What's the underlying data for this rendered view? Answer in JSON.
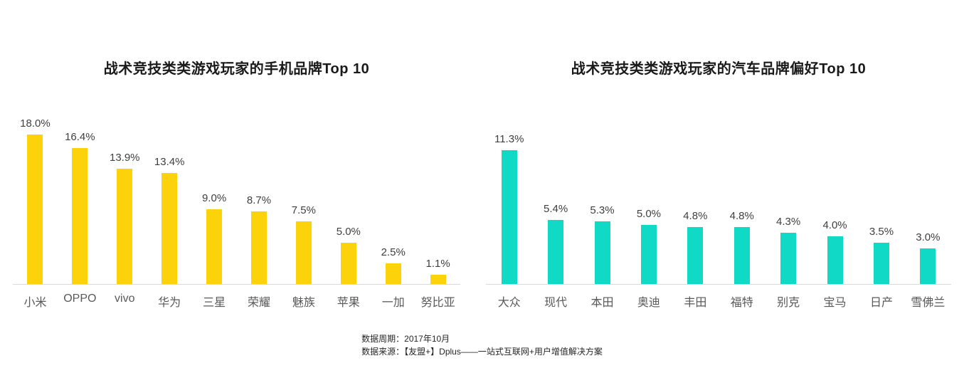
{
  "chart_data": [
    {
      "type": "bar",
      "title": "战术竞技类类游戏玩家的手机品牌Top 10",
      "categories": [
        "小米",
        "OPPO",
        "vivo",
        "华为",
        "三星",
        "荣耀",
        "魅族",
        "苹果",
        "一加",
        "努比亚"
      ],
      "values": [
        18.0,
        16.4,
        13.9,
        13.4,
        9.0,
        8.7,
        7.5,
        5.0,
        2.5,
        1.1
      ],
      "data_labels": [
        "18.0%",
        "16.4%",
        "13.9%",
        "13.4%",
        "9.0%",
        "8.7%",
        "7.5%",
        "5.0%",
        "2.5%",
        "1.1%"
      ],
      "bar_color": "#fcd30a",
      "xlabel": "",
      "ylabel": "",
      "ylim": [
        0,
        21
      ],
      "grid": false,
      "legend": "none",
      "unit": "%"
    },
    {
      "type": "bar",
      "title": "战术竞技类类游戏玩家的汽车品牌偏好Top 10",
      "categories": [
        "大众",
        "现代",
        "本田",
        "奥迪",
        "丰田",
        "福特",
        "别克",
        "宝马",
        "日产",
        "雪佛兰"
      ],
      "values": [
        11.3,
        5.4,
        5.3,
        5.0,
        4.8,
        4.8,
        4.3,
        4.0,
        3.5,
        3.0
      ],
      "data_labels": [
        "11.3%",
        "5.4%",
        "5.3%",
        "5.0%",
        "4.8%",
        "4.8%",
        "4.3%",
        "4.0%",
        "3.5%",
        "3.0%"
      ],
      "bar_color": "#10d9c5",
      "xlabel": "",
      "ylabel": "",
      "ylim": [
        0,
        14.7
      ],
      "grid": false,
      "legend": "none",
      "unit": "%"
    }
  ],
  "footer": {
    "line1": "数据周期：2017年10月",
    "line2": "数据来源：【友盟+】Dplus——一站式互联网+用户增值解决方案"
  },
  "colors": {
    "phone_bar": "#fcd30a",
    "car_bar": "#10d9c5",
    "axis_line": "#d9d9d9",
    "value_label": "#404040",
    "category_label": "#595959",
    "title": "#1a1a1a"
  }
}
